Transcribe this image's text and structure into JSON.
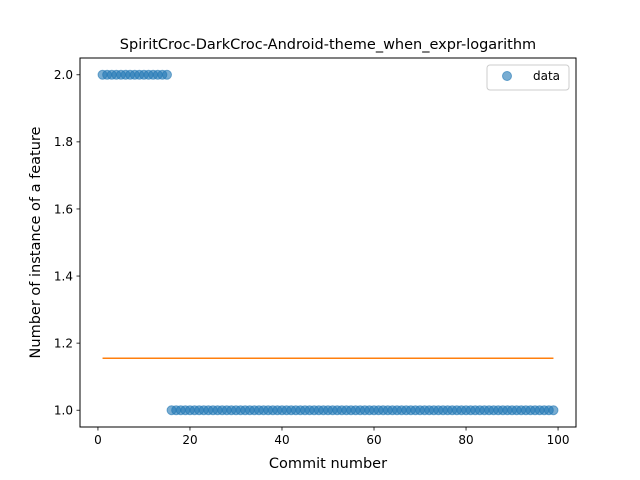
{
  "chart_data": {
    "type": "scatter",
    "title": "SpiritCroc-DarkCroc-Android-theme_when_expr-logarithm",
    "xlabel": "Commit number",
    "ylabel": "Number of instance of a feature",
    "xlim": [
      -3.9,
      103.9
    ],
    "ylim": [
      0.95,
      2.05
    ],
    "xticks": [
      0,
      20,
      40,
      60,
      80,
      100
    ],
    "yticks": [
      1.0,
      1.2,
      1.4,
      1.6,
      1.8,
      2.0
    ],
    "xtick_labels": [
      "0",
      "20",
      "40",
      "60",
      "80",
      "100"
    ],
    "ytick_labels": [
      "1.0",
      "1.2",
      "1.4",
      "1.6",
      "1.8",
      "2.0"
    ],
    "legend": {
      "position": "top-right",
      "entries": [
        "data"
      ]
    },
    "grid": false,
    "series": [
      {
        "name": "data",
        "kind": "scatter",
        "color": "#1f77b4",
        "segments": [
          {
            "x_from": 1,
            "x_to": 15,
            "y": 2.0
          },
          {
            "x_from": 16,
            "x_to": 99,
            "y": 1.0
          }
        ]
      },
      {
        "kind": "line",
        "color": "#ff7f0e",
        "x": [
          1,
          99
        ],
        "y": [
          1.155,
          1.155
        ]
      }
    ]
  }
}
